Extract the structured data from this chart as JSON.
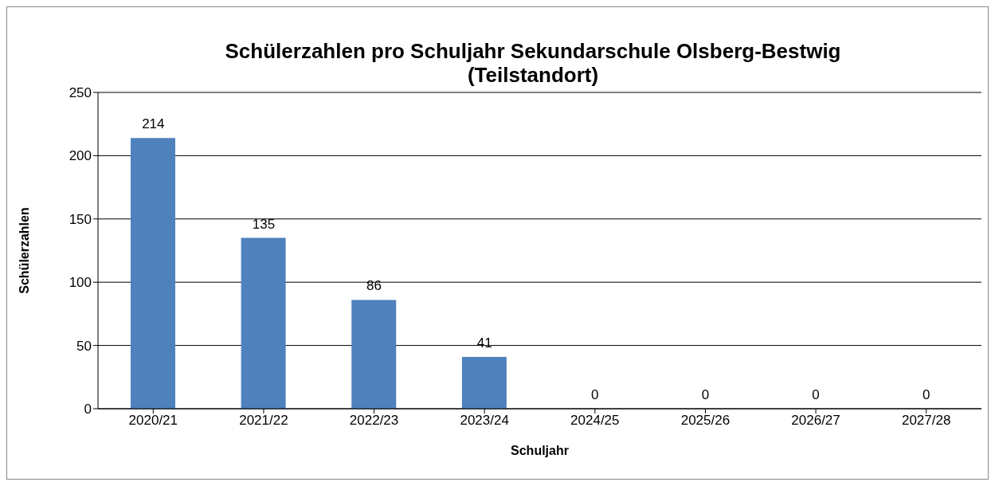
{
  "chart_data": {
    "type": "bar",
    "title": "Schülerzahlen pro Schuljahr Sekundarschule Olsberg-Bestwig (Teilstandort)",
    "xlabel": "Schuljahr",
    "ylabel": "Schülerzahlen",
    "categories": [
      "2020/21",
      "2021/22",
      "2022/23",
      "2023/24",
      "2024/25",
      "2025/26",
      "2026/27",
      "2027/28"
    ],
    "values": [
      214,
      135,
      86,
      41,
      0,
      0,
      0,
      0
    ],
    "color": "#4f81bd",
    "ylim": [
      0,
      250
    ],
    "yticks": [
      0,
      50,
      100,
      150,
      200,
      250
    ],
    "grid": "y",
    "data_labels": true
  }
}
